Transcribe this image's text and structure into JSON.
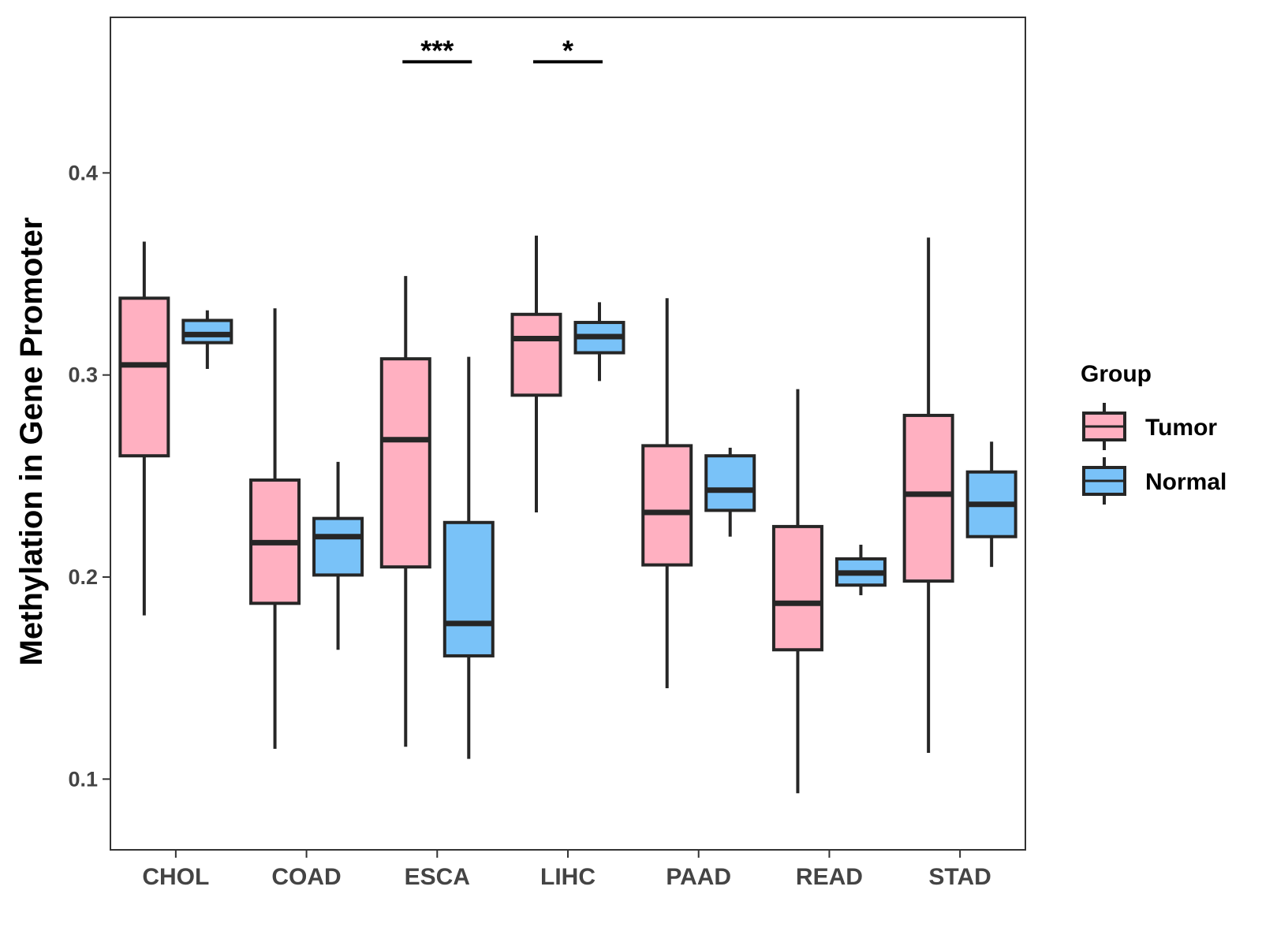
{
  "chart_data": {
    "type": "box",
    "title": "",
    "xlabel": "",
    "ylabel": "Methylation in Gene Promoter",
    "ylim": [
      0.065,
      0.477
    ],
    "yticks": [
      0.1,
      0.2,
      0.3,
      0.4
    ],
    "ytick_labels": [
      "0.1",
      "0.2",
      "0.3",
      "0.4"
    ],
    "grid": false,
    "categories": [
      "CHOL",
      "COAD",
      "ESCA",
      "LIHC",
      "PAAD",
      "READ",
      "STAD"
    ],
    "legend": {
      "title": "Group",
      "position": "right",
      "entries": [
        {
          "name": "Tumor",
          "color": "#FFB0C1"
        },
        {
          "name": "Normal",
          "color": "#79C2F8"
        }
      ]
    },
    "series": [
      {
        "name": "Tumor",
        "color": "#FFB0C1",
        "boxes": [
          {
            "category": "CHOL",
            "whisker_low": 0.181,
            "q1": 0.26,
            "median": 0.305,
            "q3": 0.338,
            "whisker_high": 0.366
          },
          {
            "category": "COAD",
            "whisker_low": 0.115,
            "q1": 0.187,
            "median": 0.217,
            "q3": 0.248,
            "whisker_high": 0.333
          },
          {
            "category": "ESCA",
            "whisker_low": 0.116,
            "q1": 0.205,
            "median": 0.268,
            "q3": 0.308,
            "whisker_high": 0.349
          },
          {
            "category": "LIHC",
            "whisker_low": 0.232,
            "q1": 0.29,
            "median": 0.318,
            "q3": 0.33,
            "whisker_high": 0.369
          },
          {
            "category": "PAAD",
            "whisker_low": 0.145,
            "q1": 0.206,
            "median": 0.232,
            "q3": 0.265,
            "whisker_high": 0.338
          },
          {
            "category": "READ",
            "whisker_low": 0.093,
            "q1": 0.164,
            "median": 0.187,
            "q3": 0.225,
            "whisker_high": 0.293
          },
          {
            "category": "STAD",
            "whisker_low": 0.113,
            "q1": 0.198,
            "median": 0.241,
            "q3": 0.28,
            "whisker_high": 0.368
          }
        ]
      },
      {
        "name": "Normal",
        "color": "#79C2F8",
        "boxes": [
          {
            "category": "CHOL",
            "whisker_low": 0.303,
            "q1": 0.316,
            "median": 0.32,
            "q3": 0.327,
            "whisker_high": 0.332
          },
          {
            "category": "COAD",
            "whisker_low": 0.164,
            "q1": 0.201,
            "median": 0.22,
            "q3": 0.229,
            "whisker_high": 0.257
          },
          {
            "category": "ESCA",
            "whisker_low": 0.11,
            "q1": 0.161,
            "median": 0.177,
            "q3": 0.227,
            "whisker_high": 0.309
          },
          {
            "category": "LIHC",
            "whisker_low": 0.297,
            "q1": 0.311,
            "median": 0.319,
            "q3": 0.326,
            "whisker_high": 0.336
          },
          {
            "category": "PAAD",
            "whisker_low": 0.22,
            "q1": 0.233,
            "median": 0.243,
            "q3": 0.26,
            "whisker_high": 0.264
          },
          {
            "category": "READ",
            "whisker_low": 0.191,
            "q1": 0.196,
            "median": 0.202,
            "q3": 0.209,
            "whisker_high": 0.216
          },
          {
            "category": "STAD",
            "whisker_low": 0.205,
            "q1": 0.22,
            "median": 0.236,
            "q3": 0.252,
            "whisker_high": 0.267
          }
        ]
      }
    ],
    "annotations": [
      {
        "category": "ESCA",
        "label": "***",
        "y": 0.455
      },
      {
        "category": "LIHC",
        "label": "*",
        "y": 0.455
      }
    ]
  }
}
